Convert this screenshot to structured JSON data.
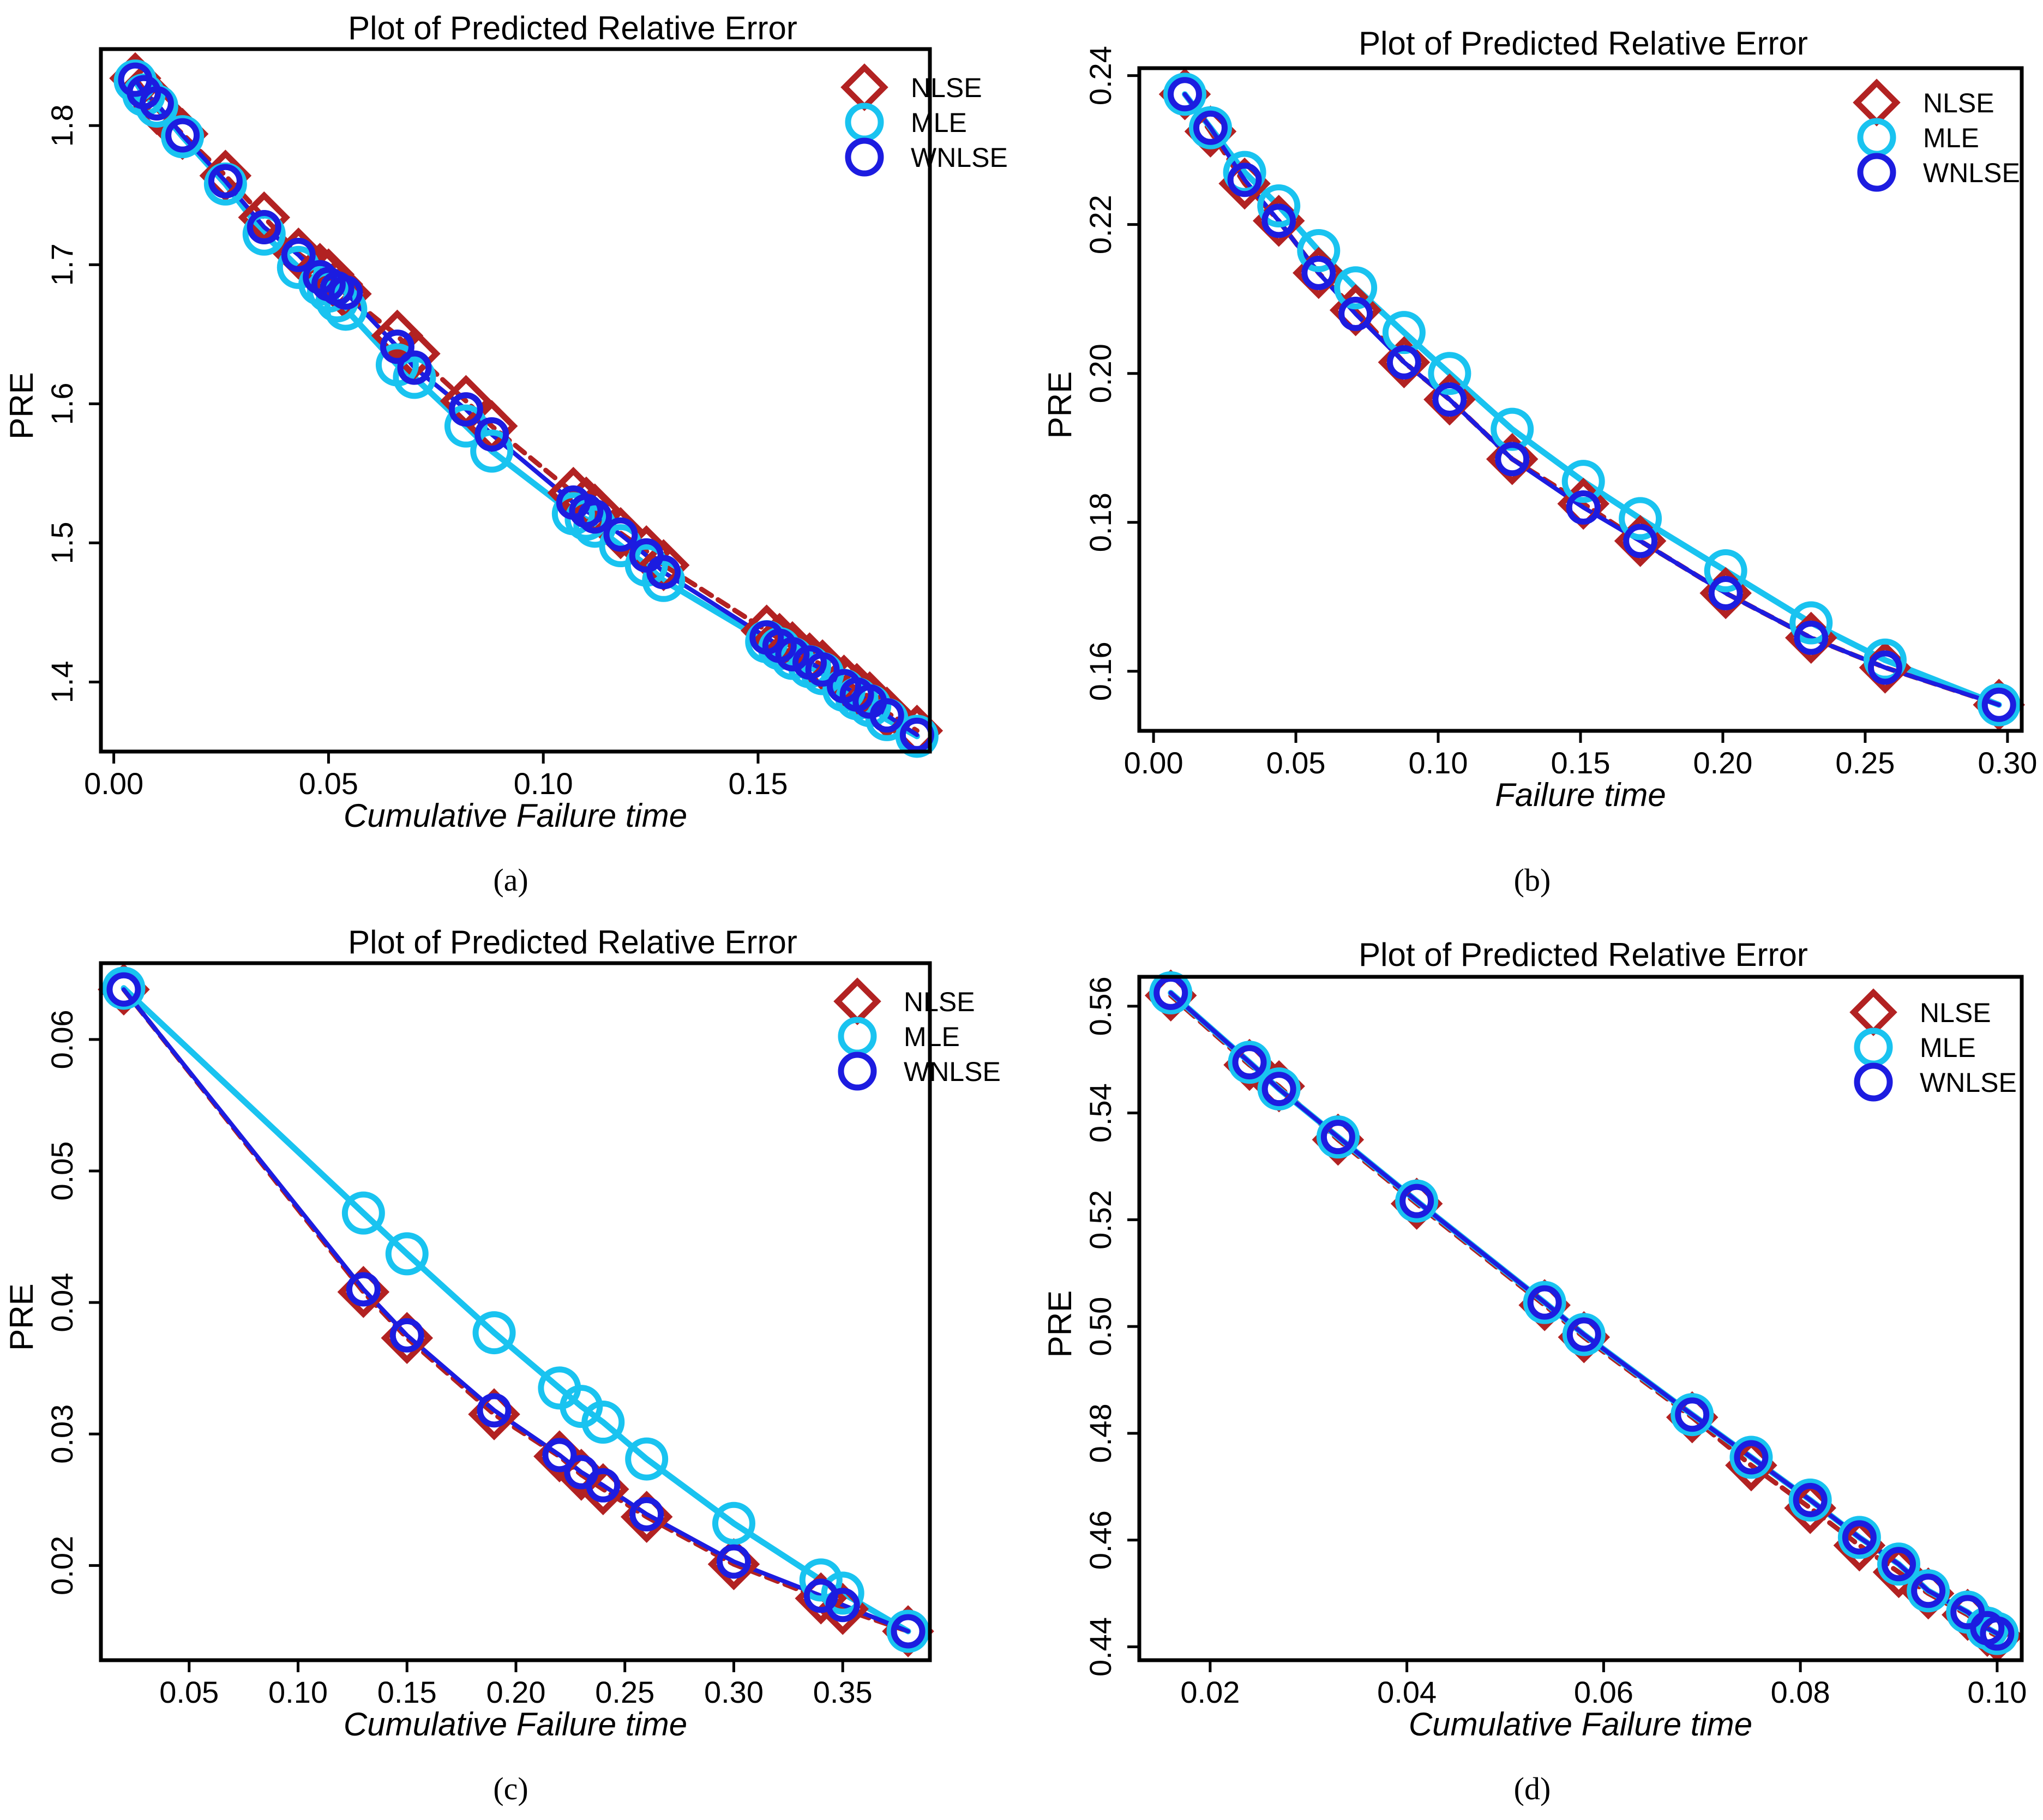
{
  "colors": {
    "nlse": "#b22222",
    "mle": "#19c3f0",
    "wnlse": "#1c1ce0",
    "frame": "#000000"
  },
  "panels": [
    {
      "label": "a",
      "caption": "(a)"
    },
    {
      "label": "b",
      "caption": "(b)"
    },
    {
      "label": "c",
      "caption": "(c)"
    },
    {
      "label": "d",
      "caption": "(d)"
    }
  ],
  "chart_data": [
    {
      "type": "line",
      "title": "Plot of Predicted Relative Error",
      "xlabel": "Cumulative Failure time",
      "ylabel": "PRE",
      "xlim": [
        -0.003,
        0.19
      ],
      "ylim": [
        1.35,
        1.855
      ],
      "xticks": [
        0.0,
        0.05,
        0.1,
        0.15
      ],
      "xtick_labels": [
        "0.00",
        "0.05",
        "0.10",
        "0.15"
      ],
      "yticks": [
        1.4,
        1.5,
        1.6,
        1.7,
        1.8
      ],
      "ytick_labels": [
        "1.4",
        "1.5",
        "1.6",
        "1.7",
        "1.8"
      ],
      "legend": [
        "NLSE",
        "MLE",
        "WNLSE"
      ],
      "series": [
        {
          "name": "NLSE",
          "marker": "diamond",
          "x": [
            0.005,
            0.007,
            0.01,
            0.016,
            0.026,
            0.035,
            0.043,
            0.048,
            0.05,
            0.052,
            0.054,
            0.066,
            0.07,
            0.082,
            0.088,
            0.107,
            0.11,
            0.112,
            0.118,
            0.124,
            0.128,
            0.152,
            0.155,
            0.158,
            0.162,
            0.165,
            0.17,
            0.173,
            0.176,
            0.18,
            0.187
          ],
          "y": [
            1.834,
            1.826,
            1.812,
            1.794,
            1.764,
            1.734,
            1.708,
            1.697,
            1.693,
            1.686,
            1.679,
            1.649,
            1.636,
            1.602,
            1.584,
            1.536,
            1.529,
            1.524,
            1.507,
            1.494,
            1.484,
            1.437,
            1.431,
            1.425,
            1.417,
            1.412,
            1.401,
            1.395,
            1.389,
            1.378,
            1.365
          ]
        },
        {
          "name": "MLE",
          "marker": "circle",
          "x": [
            0.005,
            0.007,
            0.01,
            0.016,
            0.026,
            0.035,
            0.043,
            0.048,
            0.05,
            0.052,
            0.054,
            0.066,
            0.07,
            0.082,
            0.088,
            0.107,
            0.11,
            0.112,
            0.118,
            0.124,
            0.128,
            0.152,
            0.155,
            0.158,
            0.162,
            0.165,
            0.17,
            0.173,
            0.176,
            0.18,
            0.187
          ],
          "y": [
            1.832,
            1.822,
            1.814,
            1.792,
            1.758,
            1.722,
            1.698,
            1.686,
            1.681,
            1.674,
            1.668,
            1.628,
            1.619,
            1.584,
            1.566,
            1.521,
            1.517,
            1.512,
            1.498,
            1.484,
            1.473,
            1.429,
            1.424,
            1.417,
            1.411,
            1.406,
            1.394,
            1.388,
            1.383,
            1.373,
            1.361
          ]
        },
        {
          "name": "WNLSE",
          "marker": "circle",
          "x": [
            0.005,
            0.007,
            0.01,
            0.016,
            0.026,
            0.035,
            0.043,
            0.048,
            0.05,
            0.052,
            0.054,
            0.066,
            0.07,
            0.082,
            0.088,
            0.107,
            0.11,
            0.112,
            0.118,
            0.124,
            0.128,
            0.152,
            0.155,
            0.158,
            0.162,
            0.165,
            0.17,
            0.173,
            0.176,
            0.18,
            0.187
          ],
          "y": [
            1.833,
            1.824,
            1.816,
            1.793,
            1.76,
            1.727,
            1.707,
            1.691,
            1.686,
            1.683,
            1.68,
            1.641,
            1.626,
            1.596,
            1.578,
            1.529,
            1.523,
            1.519,
            1.506,
            1.491,
            1.479,
            1.432,
            1.426,
            1.42,
            1.414,
            1.409,
            1.397,
            1.391,
            1.386,
            1.376,
            1.362
          ]
        }
      ]
    },
    {
      "type": "line",
      "title": "Plot of Predicted Relative Error",
      "xlabel": "Failure time",
      "ylabel": "PRE",
      "xlim": [
        -0.005,
        0.305
      ],
      "ylim": [
        0.152,
        0.241
      ],
      "xticks": [
        0.0,
        0.05,
        0.1,
        0.15,
        0.2,
        0.25,
        0.3
      ],
      "xtick_labels": [
        "0.00",
        "0.05",
        "0.10",
        "0.15",
        "0.20",
        "0.25",
        "0.30"
      ],
      "yticks": [
        0.16,
        0.18,
        0.2,
        0.22,
        0.24
      ],
      "ytick_labels": [
        "0.16",
        "0.18",
        "0.20",
        "0.22",
        "0.24"
      ],
      "legend": [
        "NLSE",
        "MLE",
        "WNLSE"
      ],
      "series": [
        {
          "name": "NLSE",
          "marker": "diamond",
          "x": [
            0.011,
            0.02,
            0.032,
            0.044,
            0.058,
            0.071,
            0.088,
            0.104,
            0.126,
            0.151,
            0.171,
            0.201,
            0.231,
            0.257,
            0.297
          ],
          "y": [
            0.2375,
            0.2325,
            0.2255,
            0.2205,
            0.2135,
            0.2085,
            0.2015,
            0.1965,
            0.1885,
            0.1825,
            0.1775,
            0.1705,
            0.1645,
            0.1605,
            0.1555
          ]
        },
        {
          "name": "MLE",
          "marker": "circle",
          "x": [
            0.011,
            0.02,
            0.032,
            0.044,
            0.058,
            0.071,
            0.088,
            0.104,
            0.126,
            0.151,
            0.171,
            0.201,
            0.231,
            0.257,
            0.297
          ],
          "y": [
            0.2375,
            0.233,
            0.227,
            0.2225,
            0.2165,
            0.2115,
            0.2055,
            0.2,
            0.1925,
            0.1855,
            0.1805,
            0.1735,
            0.1665,
            0.1615,
            0.1555
          ]
        },
        {
          "name": "WNLSE",
          "marker": "circle",
          "x": [
            0.011,
            0.02,
            0.032,
            0.044,
            0.058,
            0.071,
            0.088,
            0.104,
            0.126,
            0.151,
            0.171,
            0.201,
            0.231,
            0.257,
            0.297
          ],
          "y": [
            0.2375,
            0.233,
            0.226,
            0.2205,
            0.2135,
            0.208,
            0.2015,
            0.1965,
            0.1885,
            0.182,
            0.1775,
            0.1705,
            0.1645,
            0.1605,
            0.1555
          ]
        }
      ]
    },
    {
      "type": "line",
      "title": "Plot of Predicted Relative Error",
      "xlabel": "Cumulative Failure time",
      "ylabel": "PRE",
      "xlim": [
        0.0095,
        0.39
      ],
      "ylim": [
        0.0128,
        0.0658
      ],
      "xticks": [
        0.05,
        0.1,
        0.15,
        0.2,
        0.25,
        0.3,
        0.35
      ],
      "xtick_labels": [
        "0.05",
        "0.10",
        "0.15",
        "0.20",
        "0.25",
        "0.30",
        "0.35"
      ],
      "yticks": [
        0.02,
        0.03,
        0.04,
        0.05,
        0.06
      ],
      "ytick_labels": [
        "0.02",
        "0.03",
        "0.04",
        "0.05",
        "0.06"
      ],
      "legend": [
        "NLSE",
        "MLE",
        "WNLSE"
      ],
      "series": [
        {
          "name": "NLSE",
          "marker": "diamond",
          "x": [
            0.02,
            0.13,
            0.15,
            0.19,
            0.22,
            0.23,
            0.24,
            0.26,
            0.3,
            0.34,
            0.35,
            0.38
          ],
          "y": [
            0.0638,
            0.0408,
            0.0373,
            0.0315,
            0.0283,
            0.0269,
            0.0258,
            0.0237,
            0.0201,
            0.0175,
            0.0167,
            0.015
          ]
        },
        {
          "name": "MLE",
          "marker": "circle",
          "x": [
            0.02,
            0.13,
            0.15,
            0.19,
            0.22,
            0.23,
            0.24,
            0.26,
            0.3,
            0.34,
            0.35,
            0.38
          ],
          "y": [
            0.0639,
            0.0468,
            0.0437,
            0.0377,
            0.0335,
            0.0321,
            0.0309,
            0.0281,
            0.0232,
            0.0189,
            0.0179,
            0.015
          ]
        },
        {
          "name": "WNLSE",
          "marker": "circle",
          "x": [
            0.02,
            0.13,
            0.15,
            0.19,
            0.22,
            0.23,
            0.24,
            0.26,
            0.3,
            0.34,
            0.35,
            0.38
          ],
          "y": [
            0.0638,
            0.041,
            0.0375,
            0.0318,
            0.0284,
            0.0271,
            0.0261,
            0.0239,
            0.0203,
            0.0177,
            0.017,
            0.015
          ]
        }
      ]
    },
    {
      "type": "line",
      "title": "Plot of Predicted Relative Error",
      "xlabel": "Cumulative Failure time",
      "ylabel": "PRE",
      "xlim": [
        0.0128,
        0.1025
      ],
      "ylim": [
        0.4375,
        0.5655
      ],
      "xticks": [
        0.02,
        0.04,
        0.06,
        0.08,
        0.1
      ],
      "xtick_labels": [
        "0.02",
        "0.04",
        "0.06",
        "0.08",
        "0.10"
      ],
      "yticks": [
        0.44,
        0.46,
        0.48,
        0.5,
        0.52,
        0.54,
        0.56
      ],
      "ytick_labels": [
        "0.44",
        "0.46",
        "0.48",
        "0.50",
        "0.52",
        "0.54",
        "0.56"
      ],
      "legend": [
        "NLSE",
        "MLE",
        "WNLSE"
      ],
      "series": [
        {
          "name": "NLSE",
          "marker": "diamond",
          "x": [
            0.016,
            0.024,
            0.027,
            0.033,
            0.041,
            0.054,
            0.058,
            0.069,
            0.075,
            0.081,
            0.086,
            0.09,
            0.093,
            0.097,
            0.099,
            0.1
          ],
          "y": [
            0.562,
            0.549,
            0.545,
            0.535,
            0.523,
            0.504,
            0.498,
            0.483,
            0.474,
            0.466,
            0.459,
            0.454,
            0.45,
            0.446,
            0.443,
            0.442
          ]
        },
        {
          "name": "MLE",
          "marker": "circle",
          "x": [
            0.016,
            0.024,
            0.027,
            0.033,
            0.041,
            0.054,
            0.058,
            0.069,
            0.075,
            0.081,
            0.086,
            0.09,
            0.093,
            0.097,
            0.099,
            0.1
          ],
          "y": [
            0.5625,
            0.5495,
            0.5445,
            0.5355,
            0.5235,
            0.5045,
            0.4985,
            0.4835,
            0.4755,
            0.4675,
            0.4605,
            0.4555,
            0.4505,
            0.4465,
            0.4435,
            0.4425
          ]
        },
        {
          "name": "WNLSE",
          "marker": "circle",
          "x": [
            0.016,
            0.024,
            0.027,
            0.033,
            0.041,
            0.054,
            0.058,
            0.069,
            0.075,
            0.081,
            0.086,
            0.09,
            0.093,
            0.097,
            0.099,
            0.1
          ],
          "y": [
            0.5625,
            0.5495,
            0.5445,
            0.5355,
            0.5235,
            0.5045,
            0.4985,
            0.4835,
            0.4755,
            0.4675,
            0.4605,
            0.4555,
            0.4505,
            0.4465,
            0.4435,
            0.4425
          ]
        }
      ]
    }
  ]
}
